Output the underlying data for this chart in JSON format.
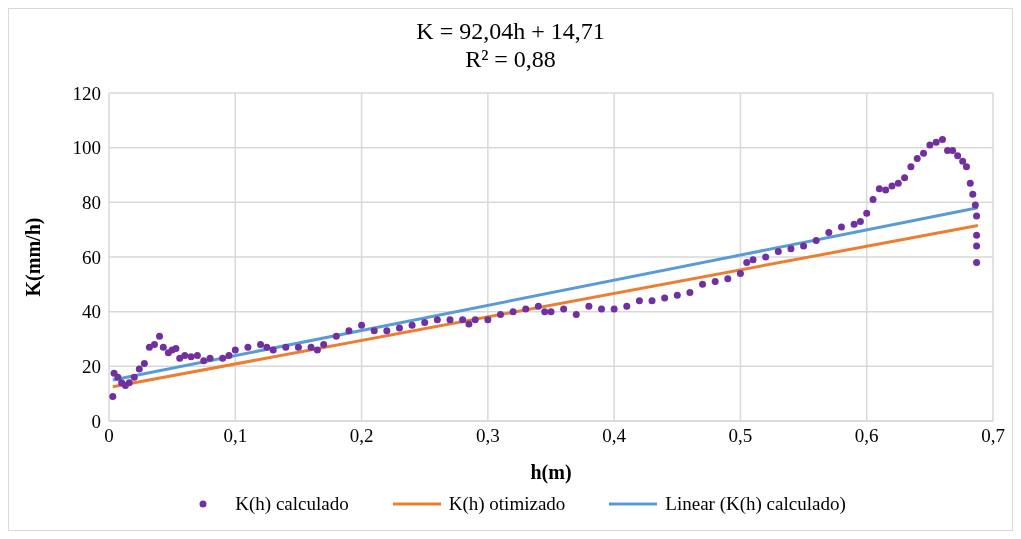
{
  "chart_data": {
    "type": "scatter",
    "title": "K = 92,04h + 14,71",
    "subtitle": "R² = 0,88",
    "xlabel": "h(m)",
    "ylabel": "K(mm/h)",
    "xlim": [
      0,
      0.7
    ],
    "xticks": [
      0,
      {
        "value": 0.1,
        "label": "0,1"
      },
      {
        "value": 0.2,
        "label": "0,2"
      },
      {
        "value": 0.3,
        "label": "0,3"
      },
      {
        "value": 0.4,
        "label": "0,4"
      },
      {
        "value": 0.5,
        "label": "0,5"
      },
      {
        "value": 0.6,
        "label": "0,6"
      },
      {
        "value": 0.7,
        "label": "0,7"
      }
    ],
    "ylim": [
      0,
      120
    ],
    "yticks": [
      0,
      20,
      40,
      60,
      80,
      100,
      120
    ],
    "grid": true,
    "legend": "bottom",
    "series": [
      {
        "name": "K(h) calculado",
        "type": "scatter",
        "marker": "circle",
        "color": "#7030a0",
        "x": [
          0.003,
          0.004,
          0.007,
          0.01,
          0.013,
          0.016,
          0.02,
          0.024,
          0.028,
          0.032,
          0.036,
          0.04,
          0.043,
          0.047,
          0.05,
          0.053,
          0.056,
          0.06,
          0.065,
          0.07,
          0.075,
          0.08,
          0.09,
          0.095,
          0.1,
          0.11,
          0.12,
          0.125,
          0.13,
          0.14,
          0.15,
          0.16,
          0.165,
          0.17,
          0.18,
          0.19,
          0.2,
          0.21,
          0.22,
          0.23,
          0.24,
          0.25,
          0.26,
          0.27,
          0.28,
          0.285,
          0.29,
          0.3,
          0.31,
          0.32,
          0.33,
          0.34,
          0.345,
          0.35,
          0.36,
          0.37,
          0.38,
          0.39,
          0.4,
          0.41,
          0.42,
          0.43,
          0.44,
          0.45,
          0.46,
          0.47,
          0.48,
          0.49,
          0.5,
          0.505,
          0.51,
          0.52,
          0.53,
          0.54,
          0.55,
          0.56,
          0.57,
          0.58,
          0.59,
          0.595,
          0.6,
          0.605,
          0.61,
          0.615,
          0.62,
          0.625,
          0.63,
          0.635,
          0.64,
          0.645,
          0.65,
          0.655,
          0.66,
          0.664,
          0.668,
          0.672,
          0.676,
          0.679,
          0.682,
          0.684,
          0.686,
          0.687,
          0.687,
          0.687,
          0.687
        ],
        "values": [
          9,
          17.5,
          16,
          14,
          13,
          14,
          16,
          19,
          21,
          27,
          28,
          31,
          27,
          25,
          26,
          26.5,
          23,
          24,
          23.5,
          24,
          22,
          23,
          23,
          24,
          26,
          27,
          28,
          27,
          26,
          27,
          27,
          27,
          26,
          28,
          31,
          33,
          35,
          33,
          33,
          34,
          35,
          36,
          37,
          37,
          37,
          35.5,
          37,
          37,
          39,
          40,
          41,
          42,
          40,
          40,
          41,
          39,
          42,
          41,
          41,
          42,
          44,
          44,
          45,
          46,
          47,
          50,
          51,
          52,
          54,
          58,
          59,
          60,
          62,
          63,
          64,
          66,
          69,
          71,
          72,
          73,
          76,
          81,
          85,
          84.5,
          86,
          87,
          89,
          93,
          96,
          98,
          101,
          102,
          103,
          99,
          99,
          97,
          95,
          93,
          87,
          83,
          79,
          75,
          68,
          64,
          58
        ]
      },
      {
        "name": "K(h) otimizado",
        "type": "line",
        "marker": "none",
        "line_style": "solid",
        "color": "#ed7d31",
        "x": [
          0.003,
          0.688
        ],
        "values": [
          12.5,
          71.5
        ]
      },
      {
        "name": "Linear (K(h) calculado)",
        "type": "line",
        "marker": "none",
        "line_style": "solid",
        "color": "#5b9bd5",
        "x": [
          0.003,
          0.688
        ],
        "values": [
          15,
          78
        ]
      }
    ]
  }
}
